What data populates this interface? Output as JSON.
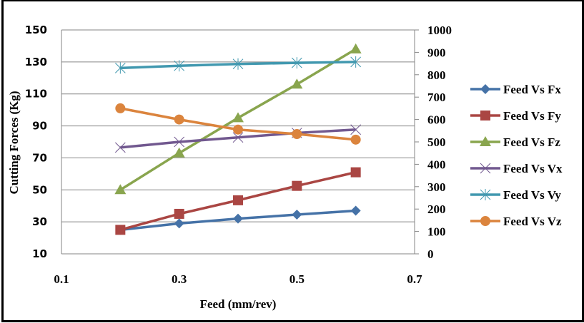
{
  "chart_data": {
    "type": "line",
    "title": "",
    "xlabel": "Feed (mm/rev)",
    "ylabel": "Cutting Forces (Kg)",
    "y2label": "",
    "x": [
      0.2,
      0.3,
      0.4,
      0.5,
      0.6
    ],
    "xlim": [
      0.1,
      0.7
    ],
    "xticks": [
      "0.1",
      "0.3",
      "0.5",
      "0.7"
    ],
    "xtick_values": [
      0.1,
      0.3,
      0.5,
      0.7
    ],
    "ylim": [
      10,
      150
    ],
    "yticks": [
      "10",
      "30",
      "50",
      "70",
      "90",
      "110",
      "130",
      "150"
    ],
    "ytick_values": [
      10,
      30,
      50,
      70,
      90,
      110,
      130,
      150
    ],
    "y2lim": [
      0,
      1000
    ],
    "y2ticks": [
      "0",
      "100",
      "200",
      "300",
      "400",
      "500",
      "600",
      "700",
      "800",
      "900",
      "1000"
    ],
    "y2tick_values": [
      0,
      100,
      200,
      300,
      400,
      500,
      600,
      700,
      800,
      900,
      1000
    ],
    "grid": "horizontal",
    "legend_position": "right",
    "series": [
      {
        "name": "Feed Vs Fx",
        "axis": "left",
        "color": "#4572A7",
        "marker": "diamond",
        "values": [
          25,
          29,
          32,
          34.5,
          37
        ]
      },
      {
        "name": "Feed Vs Fy",
        "axis": "left",
        "color": "#AA4643",
        "marker": "square",
        "values": [
          25,
          35,
          43.5,
          52.5,
          61
        ]
      },
      {
        "name": "Feed Vs Fz",
        "axis": "left",
        "color": "#89A54E",
        "marker": "triangle",
        "values": [
          50,
          73,
          95,
          116,
          138
        ]
      },
      {
        "name": "Feed Vs Vx",
        "axis": "right",
        "color": "#71588F",
        "marker": "x",
        "values": [
          475,
          500,
          520,
          540,
          555
        ]
      },
      {
        "name": "Feed Vs Vy",
        "axis": "right",
        "color": "#4198AF",
        "marker": "star",
        "values": [
          830,
          840,
          848,
          853,
          857
        ]
      },
      {
        "name": "Feed Vs Vz",
        "axis": "right",
        "color": "#DB843D",
        "marker": "circle",
        "values": [
          650,
          600,
          555,
          535,
          510
        ]
      }
    ]
  }
}
